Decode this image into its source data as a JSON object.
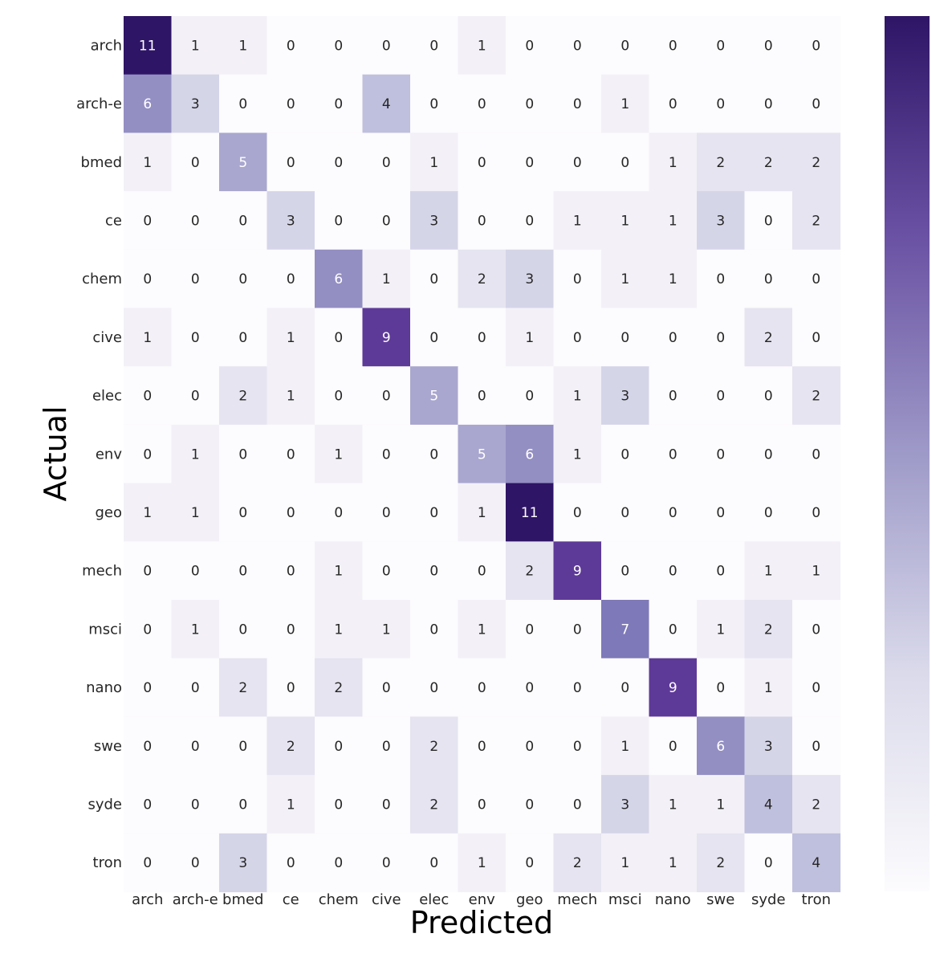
{
  "chart_data": {
    "type": "heatmap",
    "title": "",
    "xlabel": "Predicted",
    "ylabel": "Actual",
    "x_categories": [
      "arch",
      "arch-e",
      "bmed",
      "ce",
      "chem",
      "cive",
      "elec",
      "env",
      "geo",
      "mech",
      "msci",
      "nano",
      "swe",
      "syde",
      "tron"
    ],
    "y_categories": [
      "arch",
      "arch-e",
      "bmed",
      "ce",
      "chem",
      "cive",
      "elec",
      "env",
      "geo",
      "mech",
      "msci",
      "nano",
      "swe",
      "syde",
      "tron"
    ],
    "values": [
      [
        11,
        1,
        1,
        0,
        0,
        0,
        0,
        1,
        0,
        0,
        0,
        0,
        0,
        0,
        0
      ],
      [
        6,
        3,
        0,
        0,
        0,
        4,
        0,
        0,
        0,
        0,
        1,
        0,
        0,
        0,
        0
      ],
      [
        1,
        0,
        5,
        0,
        0,
        0,
        1,
        0,
        0,
        0,
        0,
        1,
        2,
        2,
        2
      ],
      [
        0,
        0,
        0,
        3,
        0,
        0,
        3,
        0,
        0,
        1,
        1,
        1,
        3,
        0,
        2
      ],
      [
        0,
        0,
        0,
        0,
        6,
        1,
        0,
        2,
        3,
        0,
        1,
        1,
        0,
        0,
        0
      ],
      [
        1,
        0,
        0,
        1,
        0,
        9,
        0,
        0,
        1,
        0,
        0,
        0,
        0,
        2,
        0
      ],
      [
        0,
        0,
        2,
        1,
        0,
        0,
        5,
        0,
        0,
        1,
        3,
        0,
        0,
        0,
        2
      ],
      [
        0,
        1,
        0,
        0,
        1,
        0,
        0,
        5,
        6,
        1,
        0,
        0,
        0,
        0,
        0
      ],
      [
        1,
        1,
        0,
        0,
        0,
        0,
        0,
        1,
        11,
        0,
        0,
        0,
        0,
        0,
        0
      ],
      [
        0,
        0,
        0,
        0,
        1,
        0,
        0,
        0,
        2,
        9,
        0,
        0,
        0,
        1,
        1
      ],
      [
        0,
        1,
        0,
        0,
        1,
        1,
        0,
        1,
        0,
        0,
        7,
        0,
        1,
        2,
        0
      ],
      [
        0,
        0,
        2,
        0,
        2,
        0,
        0,
        0,
        0,
        0,
        0,
        9,
        0,
        1,
        0
      ],
      [
        0,
        0,
        0,
        2,
        0,
        0,
        2,
        0,
        0,
        0,
        1,
        0,
        6,
        3,
        0
      ],
      [
        0,
        0,
        0,
        1,
        0,
        0,
        2,
        0,
        0,
        0,
        3,
        1,
        1,
        4,
        2
      ],
      [
        0,
        0,
        3,
        0,
        0,
        0,
        0,
        1,
        0,
        2,
        1,
        1,
        2,
        0,
        4
      ]
    ],
    "value_range": [
      0,
      11
    ],
    "colormap": "Purples",
    "colorbar": true,
    "colorbar_ticks": false,
    "annotations": true,
    "colors": {
      "low": "#fcfbfd",
      "high": "#2f1566",
      "text_dark": "#262626",
      "text_light": "#ffffff"
    }
  }
}
